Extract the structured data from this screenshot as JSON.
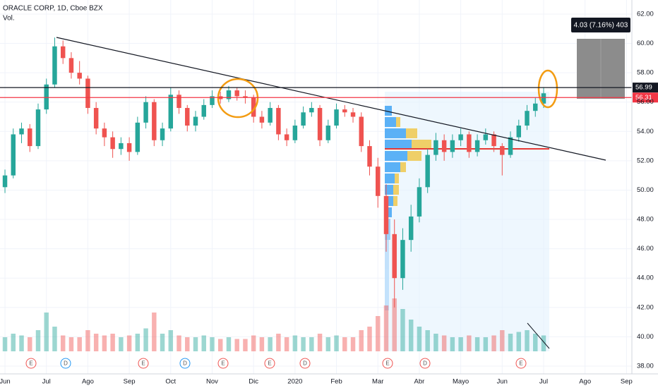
{
  "chart_data": {
    "type": "candlestick",
    "title": "ORACLE CORP, 1D, Cboe BZX",
    "volume_label": "Vol.",
    "xlim": [
      -0.12,
      15.13
    ],
    "xticks": [
      {
        "value": 0,
        "label": "Jun"
      },
      {
        "value": 1,
        "label": "Jul"
      },
      {
        "value": 2,
        "label": "Ago"
      },
      {
        "value": 3,
        "label": "Sep"
      },
      {
        "value": 4,
        "label": "Oct"
      },
      {
        "value": 5,
        "label": "Nov"
      },
      {
        "value": 6,
        "label": "Dic"
      },
      {
        "value": 7,
        "label": "2020"
      },
      {
        "value": 8,
        "label": "Feb"
      },
      {
        "value": 9,
        "label": "Mar"
      },
      {
        "value": 10,
        "label": "Abr"
      },
      {
        "value": 11,
        "label": "Mayo"
      },
      {
        "value": 12,
        "label": "Jun"
      },
      {
        "value": 13,
        "label": "Jul"
      },
      {
        "value": 14,
        "label": "Ago"
      },
      {
        "value": 15,
        "label": "Sep"
      }
    ],
    "ylim": [
      37.47,
      62.96
    ],
    "yticks": [
      {
        "value": 38,
        "label": "38.00"
      },
      {
        "value": 40,
        "label": "40.00"
      },
      {
        "value": 42,
        "label": "42.00"
      },
      {
        "value": 44,
        "label": "44.00"
      },
      {
        "value": 46,
        "label": "46.00"
      },
      {
        "value": 48,
        "label": "48.00"
      },
      {
        "value": 50,
        "label": "50.00"
      },
      {
        "value": 52,
        "label": "52.00"
      },
      {
        "value": 54,
        "label": "54.00"
      },
      {
        "value": 56,
        "label": "56.00"
      },
      {
        "value": 58,
        "label": "58.00"
      },
      {
        "value": 60,
        "label": "60.00"
      },
      {
        "value": 62,
        "label": "62.00"
      }
    ],
    "vlim": [
      0,
      40
    ],
    "up_color": "#26a69a",
    "down_color": "#ef5350",
    "levels": [
      {
        "value": 56.99,
        "color": "#131722"
      },
      {
        "value": 56.31,
        "color": "#f23645"
      }
    ],
    "measure_label": "4.03 (7.16%) 403",
    "events": [
      "E",
      "D",
      "E",
      "D",
      "E",
      "E",
      "D",
      "E",
      "D",
      "E"
    ],
    "candles": [
      [
        0,
        50.2,
        51.4,
        49.8,
        51.0,
        8
      ],
      [
        0.2,
        51.0,
        54.2,
        50.8,
        53.8,
        10
      ],
      [
        0.4,
        53.8,
        54.6,
        53.2,
        54.2,
        9
      ],
      [
        0.6,
        54.2,
        54.5,
        52.6,
        53.0,
        8
      ],
      [
        0.8,
        53.0,
        55.9,
        52.8,
        55.5,
        12
      ],
      [
        1.0,
        55.5,
        57.6,
        55.2,
        57.2,
        22
      ],
      [
        1.2,
        57.2,
        60.4,
        57.0,
        59.8,
        14
      ],
      [
        1.4,
        59.8,
        60.2,
        58.6,
        59.0,
        9
      ],
      [
        1.6,
        59.0,
        59.4,
        57.6,
        58.0,
        8
      ],
      [
        1.8,
        58.0,
        58.8,
        57.2,
        57.6,
        8
      ],
      [
        2.0,
        57.6,
        57.8,
        55.2,
        55.6,
        12
      ],
      [
        2.2,
        55.6,
        56.0,
        53.8,
        54.2,
        10
      ],
      [
        2.4,
        54.2,
        54.6,
        53.0,
        53.6,
        9
      ],
      [
        2.6,
        53.6,
        54.0,
        52.2,
        52.8,
        10
      ],
      [
        2.8,
        52.8,
        53.6,
        52.4,
        53.2,
        8
      ],
      [
        3.0,
        53.2,
        53.6,
        52.0,
        52.6,
        9
      ],
      [
        3.2,
        52.6,
        55.0,
        52.4,
        54.6,
        10
      ],
      [
        3.4,
        54.6,
        56.4,
        54.2,
        56.0,
        13
      ],
      [
        3.6,
        56.0,
        56.2,
        53.0,
        53.4,
        22
      ],
      [
        3.8,
        53.4,
        54.6,
        53.0,
        54.2,
        10
      ],
      [
        4.0,
        54.2,
        57.0,
        54.0,
        56.5,
        12
      ],
      [
        4.2,
        56.5,
        56.8,
        55.2,
        55.6,
        9
      ],
      [
        4.4,
        55.6,
        55.8,
        54.0,
        54.4,
        8
      ],
      [
        4.6,
        54.4,
        55.4,
        54.0,
        55.0,
        8
      ],
      [
        4.8,
        55.0,
        56.2,
        54.8,
        55.8,
        9
      ],
      [
        5.0,
        55.8,
        56.8,
        55.6,
        56.4,
        8
      ],
      [
        5.2,
        56.4,
        56.7,
        55.9,
        56.2,
        7
      ],
      [
        5.4,
        56.2,
        57.1,
        56.0,
        56.8,
        8
      ],
      [
        5.6,
        56.8,
        57.0,
        56.1,
        56.4,
        7
      ],
      [
        5.8,
        56.4,
        56.8,
        55.9,
        56.3,
        7
      ],
      [
        6.0,
        56.3,
        56.5,
        54.6,
        55.0,
        9
      ],
      [
        6.2,
        55.0,
        55.4,
        54.2,
        54.6,
        8
      ],
      [
        6.4,
        54.6,
        56.0,
        54.4,
        55.6,
        8
      ],
      [
        6.6,
        55.6,
        55.8,
        53.4,
        53.8,
        10
      ],
      [
        6.8,
        53.8,
        54.2,
        53.0,
        53.4,
        8
      ],
      [
        7.0,
        53.4,
        54.8,
        53.2,
        54.4,
        9
      ],
      [
        7.2,
        54.4,
        55.7,
        54.2,
        55.3,
        8
      ],
      [
        7.4,
        55.3,
        56.0,
        55.0,
        55.6,
        8
      ],
      [
        7.6,
        55.6,
        55.8,
        53.0,
        53.4,
        10
      ],
      [
        7.8,
        53.4,
        54.8,
        53.2,
        54.4,
        8
      ],
      [
        8.0,
        54.4,
        55.9,
        54.2,
        55.5,
        9
      ],
      [
        8.2,
        55.5,
        55.8,
        55.0,
        55.3,
        8
      ],
      [
        8.4,
        55.3,
        55.6,
        54.6,
        55.0,
        8
      ],
      [
        8.6,
        55.0,
        55.3,
        52.6,
        53.0,
        12
      ],
      [
        8.8,
        53.0,
        53.4,
        51.0,
        51.6,
        14
      ],
      [
        9.0,
        51.6,
        52.2,
        48.8,
        49.6,
        20
      ],
      [
        9.2,
        49.6,
        50.4,
        45.8,
        47.0,
        26
      ],
      [
        9.4,
        47.0,
        48.0,
        42.0,
        44.0,
        30
      ],
      [
        9.6,
        44.0,
        47.4,
        43.2,
        46.6,
        24
      ],
      [
        9.8,
        46.6,
        49.0,
        45.8,
        48.2,
        18
      ],
      [
        10.0,
        48.2,
        50.8,
        47.8,
        50.2,
        14
      ],
      [
        10.2,
        50.2,
        52.8,
        49.8,
        52.4,
        12
      ],
      [
        10.4,
        52.4,
        53.9,
        52.0,
        53.4,
        10
      ],
      [
        10.6,
        53.4,
        53.8,
        52.0,
        52.6,
        9
      ],
      [
        10.8,
        52.6,
        53.8,
        52.2,
        53.4,
        8
      ],
      [
        11.0,
        53.4,
        54.2,
        53.0,
        53.8,
        8
      ],
      [
        11.2,
        53.8,
        54.0,
        52.2,
        52.6,
        9
      ],
      [
        11.4,
        52.6,
        53.8,
        52.3,
        53.4,
        8
      ],
      [
        11.6,
        53.4,
        54.2,
        53.1,
        53.8,
        8
      ],
      [
        11.8,
        53.8,
        54.0,
        52.6,
        53.0,
        9
      ],
      [
        12.0,
        53.0,
        53.2,
        51.0,
        52.4,
        12
      ],
      [
        12.2,
        52.4,
        54.0,
        52.2,
        53.6,
        10
      ],
      [
        12.4,
        53.6,
        54.8,
        53.3,
        54.4,
        11
      ],
      [
        12.6,
        54.4,
        55.8,
        54.1,
        55.4,
        12
      ],
      [
        12.8,
        55.4,
        56.3,
        55.0,
        55.9,
        10
      ],
      [
        13.0,
        55.9,
        57.0,
        55.6,
        56.6,
        9
      ]
    ]
  }
}
